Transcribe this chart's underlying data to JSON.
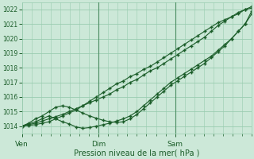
{
  "xlabel": "Pression niveau de la mer( hPa )",
  "bg_color": "#cce8d8",
  "grid_color": "#99ccb0",
  "line_color": "#1a5c28",
  "ylim": [
    1013.5,
    1022.5
  ],
  "xlim": [
    0,
    72
  ],
  "yticks": [
    1014,
    1015,
    1016,
    1017,
    1018,
    1019,
    1020,
    1021,
    1022
  ],
  "xtick_positions": [
    0,
    24,
    48
  ],
  "xtick_labels": [
    "Ven",
    "Dim",
    "Sam"
  ],
  "vlines": [
    24,
    48
  ],
  "series": [
    [
      1014.0,
      1014.05,
      1014.1,
      1014.2,
      1014.3,
      1014.5,
      1014.7,
      1014.9,
      1015.1,
      1015.4,
      1015.7,
      1016.0,
      1016.3,
      1016.6,
      1016.9,
      1017.1,
      1017.4,
      1017.6,
      1017.9,
      1018.1,
      1018.4,
      1018.7,
      1019.0,
      1019.3,
      1019.6,
      1019.9,
      1020.2,
      1020.5,
      1020.8,
      1021.1,
      1021.3,
      1021.5,
      1021.8,
      1022.0,
      1022.1
    ],
    [
      1014.0,
      1014.15,
      1014.3,
      1014.5,
      1014.7,
      1014.5,
      1014.3,
      1014.15,
      1013.95,
      1013.85,
      1013.9,
      1014.0,
      1014.1,
      1014.2,
      1014.35,
      1014.5,
      1014.7,
      1015.0,
      1015.4,
      1015.8,
      1016.2,
      1016.6,
      1017.0,
      1017.3,
      1017.6,
      1017.9,
      1018.2,
      1018.5,
      1018.8,
      1019.2,
      1019.6,
      1020.0,
      1020.5,
      1021.0,
      1021.7
    ],
    [
      1014.0,
      1014.2,
      1014.5,
      1014.7,
      1015.0,
      1015.3,
      1015.4,
      1015.3,
      1015.1,
      1014.9,
      1014.7,
      1014.55,
      1014.4,
      1014.3,
      1014.25,
      1014.3,
      1014.5,
      1014.8,
      1015.2,
      1015.6,
      1016.0,
      1016.4,
      1016.8,
      1017.1,
      1017.4,
      1017.7,
      1018.0,
      1018.3,
      1018.7,
      1019.1,
      1019.5,
      1020.0,
      1020.5,
      1021.0,
      1021.9
    ],
    [
      1014.0,
      1014.1,
      1014.2,
      1014.35,
      1014.5,
      1014.65,
      1014.8,
      1015.0,
      1015.2,
      1015.4,
      1015.6,
      1015.8,
      1016.0,
      1016.2,
      1016.5,
      1016.7,
      1017.0,
      1017.2,
      1017.5,
      1017.8,
      1018.0,
      1018.3,
      1018.6,
      1018.9,
      1019.2,
      1019.5,
      1019.8,
      1020.1,
      1020.5,
      1020.9,
      1021.2,
      1021.5,
      1021.7,
      1022.0,
      1022.2
    ]
  ]
}
